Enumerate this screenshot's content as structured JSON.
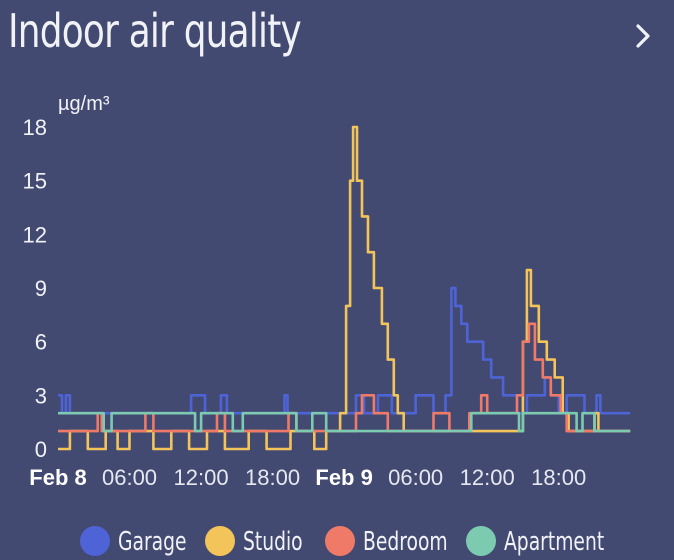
{
  "header": {
    "title": "Indoor air quality",
    "next_icon": "chevron-right-icon"
  },
  "chart_data": {
    "type": "line",
    "title": "Indoor air quality",
    "ylabel": "µg/m³",
    "xlabel": "",
    "ylim": [
      0,
      18
    ],
    "yticks": [
      "0",
      "3",
      "6",
      "9",
      "12",
      "15",
      "18"
    ],
    "xlim": [
      "2024-02-08T00:00",
      "2024-02-10T03:00"
    ],
    "xticks": [
      {
        "label": "Feb 8",
        "t": "2024-02-08T00:00",
        "bold": true
      },
      {
        "label": "06:00",
        "t": "2024-02-08T06:00",
        "bold": false
      },
      {
        "label": "12:00",
        "t": "2024-02-08T12:00",
        "bold": false
      },
      {
        "label": "18:00",
        "t": "2024-02-08T18:00",
        "bold": false
      },
      {
        "label": "Feb 9",
        "t": "2024-02-09T00:00",
        "bold": true
      },
      {
        "label": "06:00",
        "t": "2024-02-09T06:00",
        "bold": false
      },
      {
        "label": "12:00",
        "t": "2024-02-09T12:00",
        "bold": false
      },
      {
        "label": "18:00",
        "t": "2024-02-09T18:00",
        "bold": false
      }
    ],
    "grid": false,
    "legend_position": "bottom",
    "series": [
      {
        "name": "Garage",
        "color": "#4e64d6",
        "points": [
          [
            "2024-02-08T00:00",
            3
          ],
          [
            "2024-02-08T00:20",
            2
          ],
          [
            "2024-02-08T00:40",
            3
          ],
          [
            "2024-02-08T01:00",
            2
          ],
          [
            "2024-02-08T11:00",
            2
          ],
          [
            "2024-02-08T11:10",
            3
          ],
          [
            "2024-02-08T12:20",
            2
          ],
          [
            "2024-02-08T13:40",
            3
          ],
          [
            "2024-02-08T14:10",
            2
          ],
          [
            "2024-02-08T18:50",
            2
          ],
          [
            "2024-02-08T19:00",
            3
          ],
          [
            "2024-02-08T19:15",
            2
          ],
          [
            "2024-02-09T00:30",
            2
          ],
          [
            "2024-02-09T01:00",
            3
          ],
          [
            "2024-02-09T01:40",
            2
          ],
          [
            "2024-02-09T02:50",
            3
          ],
          [
            "2024-02-09T04:00",
            2
          ],
          [
            "2024-02-09T06:00",
            3
          ],
          [
            "2024-02-09T07:30",
            2
          ],
          [
            "2024-02-09T08:30",
            3
          ],
          [
            "2024-02-09T09:00",
            9
          ],
          [
            "2024-02-09T09:20",
            8
          ],
          [
            "2024-02-09T09:50",
            7
          ],
          [
            "2024-02-09T10:20",
            6
          ],
          [
            "2024-02-09T11:40",
            5
          ],
          [
            "2024-02-09T12:20",
            4
          ],
          [
            "2024-02-09T13:20",
            3
          ],
          [
            "2024-02-09T14:30",
            2
          ],
          [
            "2024-02-09T15:20",
            3
          ],
          [
            "2024-02-09T16:50",
            4
          ],
          [
            "2024-02-09T17:20",
            3
          ],
          [
            "2024-02-09T18:00",
            2
          ],
          [
            "2024-02-09T18:40",
            3
          ],
          [
            "2024-02-09T20:10",
            2
          ],
          [
            "2024-02-09T21:10",
            3
          ],
          [
            "2024-02-09T21:30",
            2
          ],
          [
            "2024-02-10T00:00",
            2
          ]
        ]
      },
      {
        "name": "Studio",
        "color": "#f2c45a",
        "points": [
          [
            "2024-02-08T00:00",
            0
          ],
          [
            "2024-02-08T01:00",
            1
          ],
          [
            "2024-02-08T02:30",
            0
          ],
          [
            "2024-02-08T04:00",
            1
          ],
          [
            "2024-02-08T05:00",
            0
          ],
          [
            "2024-02-08T06:00",
            1
          ],
          [
            "2024-02-08T08:00",
            0
          ],
          [
            "2024-02-08T09:30",
            1
          ],
          [
            "2024-02-08T11:00",
            0
          ],
          [
            "2024-02-08T12:30",
            1
          ],
          [
            "2024-02-08T14:00",
            0
          ],
          [
            "2024-02-08T16:00",
            1
          ],
          [
            "2024-02-08T17:30",
            0
          ],
          [
            "2024-02-08T19:30",
            1
          ],
          [
            "2024-02-08T21:30",
            0
          ],
          [
            "2024-02-08T22:30",
            1
          ],
          [
            "2024-02-08T23:40",
            2
          ],
          [
            "2024-02-09T00:10",
            8
          ],
          [
            "2024-02-09T00:30",
            15
          ],
          [
            "2024-02-09T00:45",
            18
          ],
          [
            "2024-02-09T01:05",
            15
          ],
          [
            "2024-02-09T01:30",
            13
          ],
          [
            "2024-02-09T02:00",
            11
          ],
          [
            "2024-02-09T02:30",
            9
          ],
          [
            "2024-02-09T03:10",
            7
          ],
          [
            "2024-02-09T03:40",
            5
          ],
          [
            "2024-02-09T04:10",
            3
          ],
          [
            "2024-02-09T04:30",
            2
          ],
          [
            "2024-02-09T05:00",
            1
          ],
          [
            "2024-02-09T14:30",
            1
          ],
          [
            "2024-02-09T15:00",
            6
          ],
          [
            "2024-02-09T15:20",
            10
          ],
          [
            "2024-02-09T15:40",
            8
          ],
          [
            "2024-02-09T16:20",
            6
          ],
          [
            "2024-02-09T17:00",
            5
          ],
          [
            "2024-02-09T17:40",
            4
          ],
          [
            "2024-02-09T18:20",
            2
          ],
          [
            "2024-02-09T18:50",
            1
          ],
          [
            "2024-02-09T20:00",
            1
          ],
          [
            "2024-02-09T21:00",
            2
          ],
          [
            "2024-02-09T21:20",
            1
          ],
          [
            "2024-02-10T00:00",
            1
          ]
        ]
      },
      {
        "name": "Bedroom",
        "color": "#f07a68",
        "points": [
          [
            "2024-02-08T00:00",
            1
          ],
          [
            "2024-02-08T03:00",
            1
          ],
          [
            "2024-02-08T03:20",
            2
          ],
          [
            "2024-02-08T03:40",
            1
          ],
          [
            "2024-02-08T07:00",
            1
          ],
          [
            "2024-02-08T07:20",
            2
          ],
          [
            "2024-02-08T08:00",
            1
          ],
          [
            "2024-02-08T13:00",
            1
          ],
          [
            "2024-02-08T13:20",
            2
          ],
          [
            "2024-02-08T14:00",
            1
          ],
          [
            "2024-02-08T19:00",
            1
          ],
          [
            "2024-02-08T19:20",
            2
          ],
          [
            "2024-02-08T20:00",
            1
          ],
          [
            "2024-02-09T00:00",
            1
          ],
          [
            "2024-02-09T01:00",
            2
          ],
          [
            "2024-02-09T01:30",
            3
          ],
          [
            "2024-02-09T02:30",
            2
          ],
          [
            "2024-02-09T03:40",
            1
          ],
          [
            "2024-02-09T06:00",
            1
          ],
          [
            "2024-02-09T07:30",
            2
          ],
          [
            "2024-02-09T08:50",
            1
          ],
          [
            "2024-02-09T10:30",
            2
          ],
          [
            "2024-02-09T11:30",
            3
          ],
          [
            "2024-02-09T12:00",
            2
          ],
          [
            "2024-02-09T14:30",
            3
          ],
          [
            "2024-02-09T15:00",
            6
          ],
          [
            "2024-02-09T15:30",
            7
          ],
          [
            "2024-02-09T16:00",
            5
          ],
          [
            "2024-02-09T16:40",
            4
          ],
          [
            "2024-02-09T17:20",
            3
          ],
          [
            "2024-02-09T18:10",
            2
          ],
          [
            "2024-02-09T18:40",
            1
          ],
          [
            "2024-02-10T00:00",
            1
          ]
        ]
      },
      {
        "name": "Apartment",
        "color": "#7ccbb1",
        "points": [
          [
            "2024-02-08T00:00",
            2
          ],
          [
            "2024-02-08T03:30",
            2
          ],
          [
            "2024-02-08T03:50",
            1
          ],
          [
            "2024-02-08T04:30",
            2
          ],
          [
            "2024-02-08T09:00",
            2
          ],
          [
            "2024-02-08T11:30",
            1
          ],
          [
            "2024-02-08T12:00",
            2
          ],
          [
            "2024-02-08T14:00",
            2
          ],
          [
            "2024-02-08T14:40",
            1
          ],
          [
            "2024-02-08T15:30",
            2
          ],
          [
            "2024-02-08T20:00",
            1
          ],
          [
            "2024-02-08T21:20",
            2
          ],
          [
            "2024-02-08T22:30",
            1
          ],
          [
            "2024-02-09T08:40",
            1
          ],
          [
            "2024-02-09T10:40",
            2
          ],
          [
            "2024-02-09T14:00",
            2
          ],
          [
            "2024-02-09T14:40",
            1
          ],
          [
            "2024-02-09T15:00",
            2
          ],
          [
            "2024-02-09T19:00",
            2
          ],
          [
            "2024-02-09T19:30",
            1
          ],
          [
            "2024-02-09T20:00",
            2
          ],
          [
            "2024-02-09T21:00",
            1
          ],
          [
            "2024-02-10T00:00",
            1
          ]
        ]
      }
    ]
  }
}
